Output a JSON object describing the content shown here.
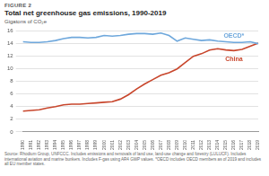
{
  "chart_data": {
    "type": "line",
    "figure": "FIGURE 2",
    "title": "Total net greenhouse gas emissions, 1990-2019",
    "subtitle": "Gigatons of CO₂e",
    "source": "Source: Rhodium Group, UNFCCC. Includes emissions and removals of land use, land-use change and forestry (LULUCF). Includes international aviation and marine bunkers. Includes F-gas using AR4 GWP values. *OECD includes OECD members as of 2019 and includes all EU member states.",
    "categories": [
      "1990",
      "1991",
      "1992",
      "1993",
      "1994",
      "1995",
      "1996",
      "1997",
      "1998",
      "1999",
      "2000",
      "2001",
      "2002",
      "2003",
      "2004",
      "2005",
      "2006",
      "2007",
      "2008",
      "2009",
      "2010",
      "2011",
      "2012",
      "2013",
      "2014",
      "2015",
      "2016",
      "2017",
      "2018",
      "2019"
    ],
    "series": [
      {
        "name": "OECD*",
        "color": "#6fa8dc",
        "values": [
          14.3,
          14.2,
          14.2,
          14.3,
          14.5,
          14.8,
          15.0,
          15.0,
          14.9,
          15.0,
          15.3,
          15.2,
          15.3,
          15.5,
          15.6,
          15.6,
          15.5,
          15.7,
          15.3,
          14.4,
          14.9,
          14.7,
          14.5,
          14.6,
          14.4,
          14.3,
          14.2,
          14.2,
          14.3,
          14.0
        ]
      },
      {
        "name": "China",
        "color": "#c8462c",
        "values": [
          3.3,
          3.4,
          3.5,
          3.8,
          4.0,
          4.3,
          4.4,
          4.4,
          4.5,
          4.6,
          4.7,
          4.8,
          5.2,
          5.9,
          6.8,
          7.6,
          8.3,
          9.0,
          9.4,
          10.0,
          11.0,
          12.0,
          12.4,
          13.0,
          13.2,
          13.0,
          12.9,
          13.1,
          13.6,
          14.1
        ]
      }
    ],
    "ylim": [
      0,
      16
    ],
    "yticks": [
      0,
      2,
      4,
      6,
      8,
      10,
      12,
      14,
      16
    ],
    "grid": true
  }
}
